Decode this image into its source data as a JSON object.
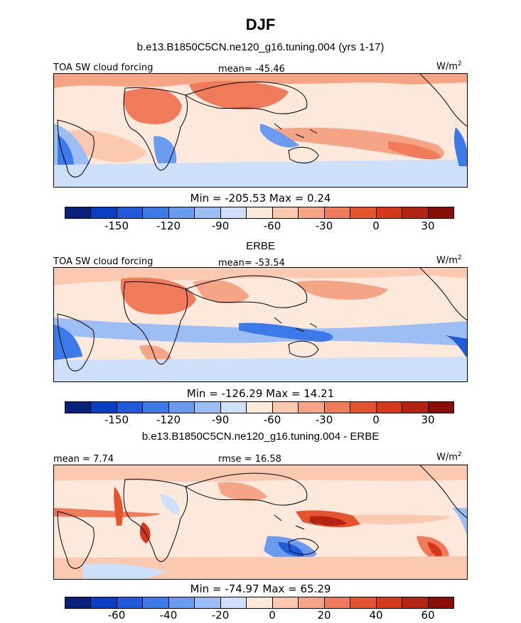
{
  "title": "DJF",
  "palette": [
    "#08217a",
    "#0a3fc4",
    "#1f5bd9",
    "#3b7ae8",
    "#6a9bef",
    "#9dbef4",
    "#cddff9",
    "#fde9dc",
    "#fbc9b0",
    "#f6a486",
    "#ef7b5a",
    "#e6542f",
    "#d4381b",
    "#b52412",
    "#8a0e08"
  ],
  "colorbar_labels_top": [
    "-150",
    "-120",
    "-90",
    "-60",
    "-30",
    "0",
    "30"
  ],
  "colorbar_labels_diff": [
    "-60",
    "-40",
    "-20",
    "0",
    "20",
    "40",
    "60"
  ],
  "panels": [
    {
      "title": "b.e13.B1850C5CN.ne120_g16.tuning.004 (yrs 1-17)",
      "left_label": "TOA SW cloud forcing",
      "center_label": "mean= -45.46",
      "units": "W/m",
      "units_sup": "2",
      "minmax": "Min = -205.53 Max =   0.24"
    },
    {
      "title": "ERBE",
      "left_label": "TOA SW cloud forcing",
      "center_label": "mean= -53.54",
      "units": "W/m",
      "units_sup": "2",
      "minmax": "Min = -126.29 Max =  14.21"
    },
    {
      "title": "b.e13.B1850C5CN.ne120_g16.tuning.004 - ERBE",
      "left_label": "mean =   7.74",
      "center_label": "rmse =  16.58",
      "units": "W/m",
      "units_sup": "2",
      "minmax": "Min = -74.97 Max =  65.29"
    }
  ]
}
